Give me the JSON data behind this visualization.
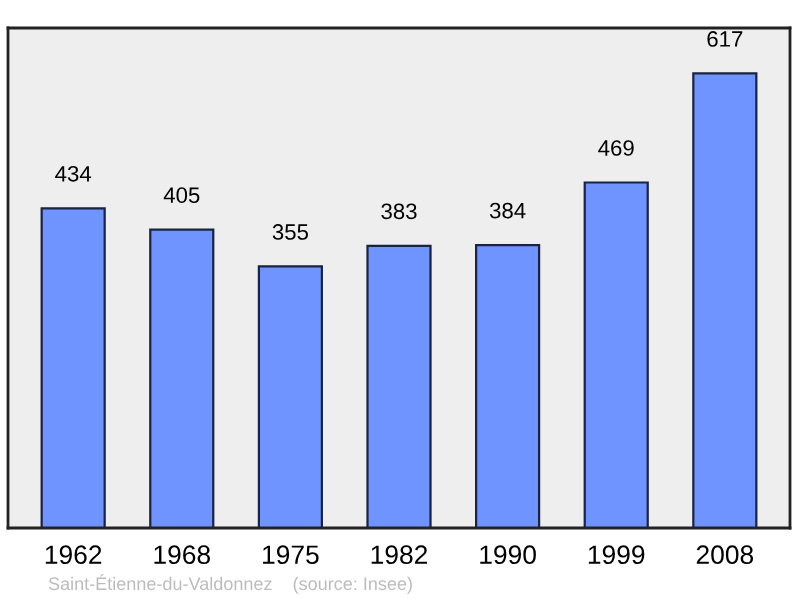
{
  "chart_data": {
    "type": "bar",
    "categories": [
      "1962",
      "1968",
      "1975",
      "1982",
      "1990",
      "1999",
      "2008"
    ],
    "values": [
      434,
      405,
      355,
      383,
      384,
      469,
      617
    ],
    "color": "#7094ff",
    "data_labels": true,
    "grid": false,
    "legend": false,
    "annotations": [
      "Saint-Étienne-du-Valdonnez    (source: Insee)"
    ]
  }
}
